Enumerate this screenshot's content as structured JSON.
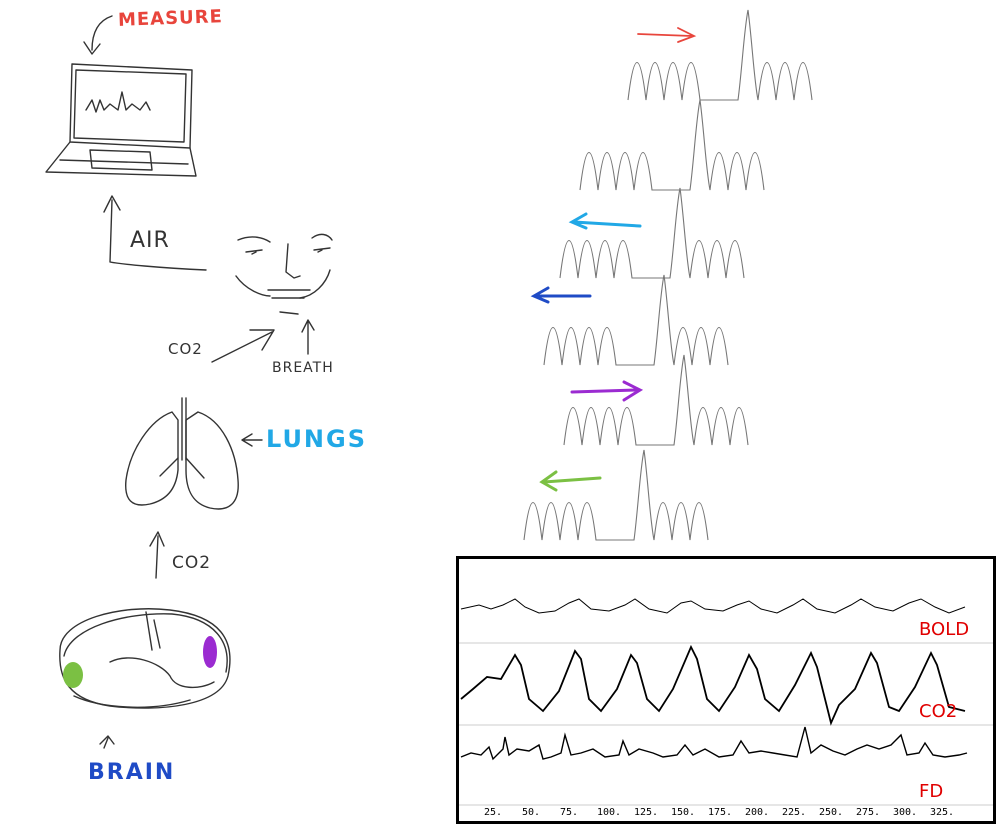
{
  "sketch": {
    "measure_label": "MEASURE",
    "air_label": "AIR",
    "co2_face_label": "CO2",
    "breath_label": "BREATH",
    "lungs_label": "LUNGS",
    "co2_lungs_label": "CO2",
    "brain_label": "BRAIN"
  },
  "colors": {
    "measure": "#e8453c",
    "lungs": "#21a8e6",
    "brain": "#1f4bc6",
    "arrow_red": "#e8453c",
    "arrow_lightblue": "#21a8e6",
    "arrow_darkblue": "#1f4bc6",
    "arrow_purple": "#9b2bd1",
    "arrow_green": "#7bc043"
  },
  "waveform_arrows": [
    {
      "direction": "right",
      "color": "red"
    },
    {
      "direction": "left",
      "color": "lightblue"
    },
    {
      "direction": "left",
      "color": "darkblue"
    },
    {
      "direction": "right",
      "color": "purple"
    },
    {
      "direction": "left",
      "color": "green"
    }
  ],
  "panel": {
    "trace_labels": [
      "BOLD",
      "CO2",
      "FD"
    ],
    "x_ticks": [
      "25.",
      "50.",
      "75.",
      "100.",
      "125.",
      "150.",
      "175.",
      "200.",
      "225.",
      "250.",
      "275.",
      "300.",
      "325."
    ]
  }
}
